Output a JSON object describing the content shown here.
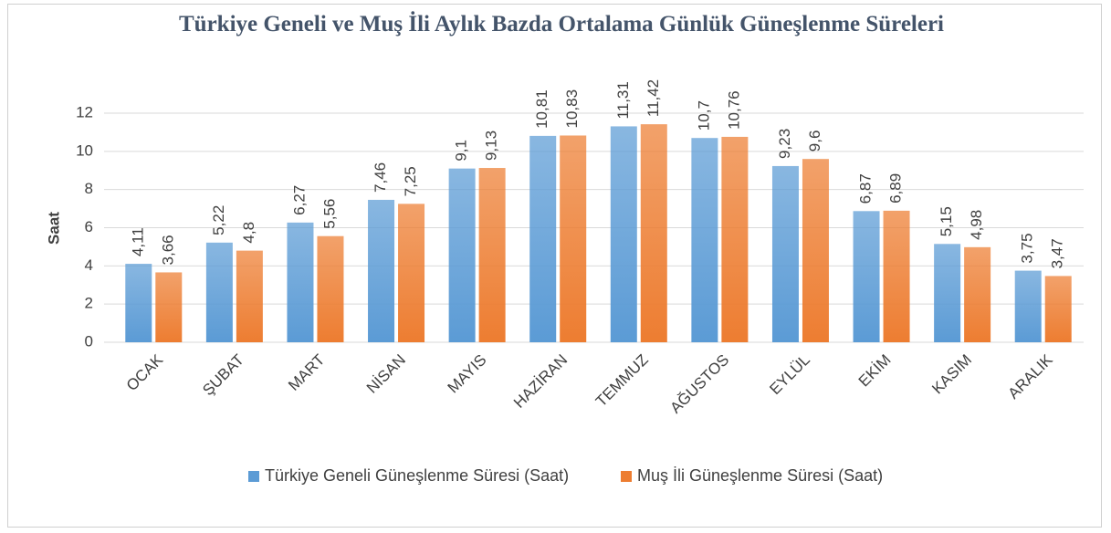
{
  "chart_data": {
    "type": "bar",
    "title": "Türkiye Geneli ve Muş İli Aylık Bazda Ortalama Günlük Güneşlenme Süreleri",
    "y_label": "Saat",
    "categories": [
      "OCAK",
      "ŞUBAT",
      "MART",
      "NİSAN",
      "MAYIS",
      "HAZİRAN",
      "TEMMUZ",
      "AĞUSTOS",
      "EYLÜL",
      "EKİM",
      "KASIM",
      "ARALIK"
    ],
    "series": [
      {
        "name": "Türkiye Geneli Güneşlenme Süresi (Saat)",
        "color": "#5b9bd5",
        "values": [
          4.11,
          5.22,
          6.27,
          7.46,
          9.1,
          10.81,
          11.31,
          10.7,
          9.23,
          6.87,
          5.15,
          3.75
        ],
        "value_labels": [
          "4,11",
          "5,22",
          "6,27",
          "7,46",
          "9,1",
          "10,81",
          "11,31",
          "10,7",
          "9,23",
          "6,87",
          "5,15",
          "3,75"
        ]
      },
      {
        "name": "Muş İli Güneşlenme Süresi (Saat)",
        "color": "#ed7d31",
        "values": [
          3.66,
          4.8,
          5.56,
          7.25,
          9.13,
          10.83,
          11.42,
          10.76,
          9.6,
          6.89,
          4.98,
          3.47
        ],
        "value_labels": [
          "3,66",
          "4,8",
          "5,56",
          "7,25",
          "9,13",
          "10,83",
          "11,42",
          "10,76",
          "9,6",
          "6,89",
          "4,98",
          "3,47"
        ]
      }
    ],
    "ylim": [
      0,
      12
    ],
    "yticks": [
      0,
      2,
      4,
      6,
      8,
      10,
      12
    ],
    "grid": true,
    "legend": "bottom"
  }
}
